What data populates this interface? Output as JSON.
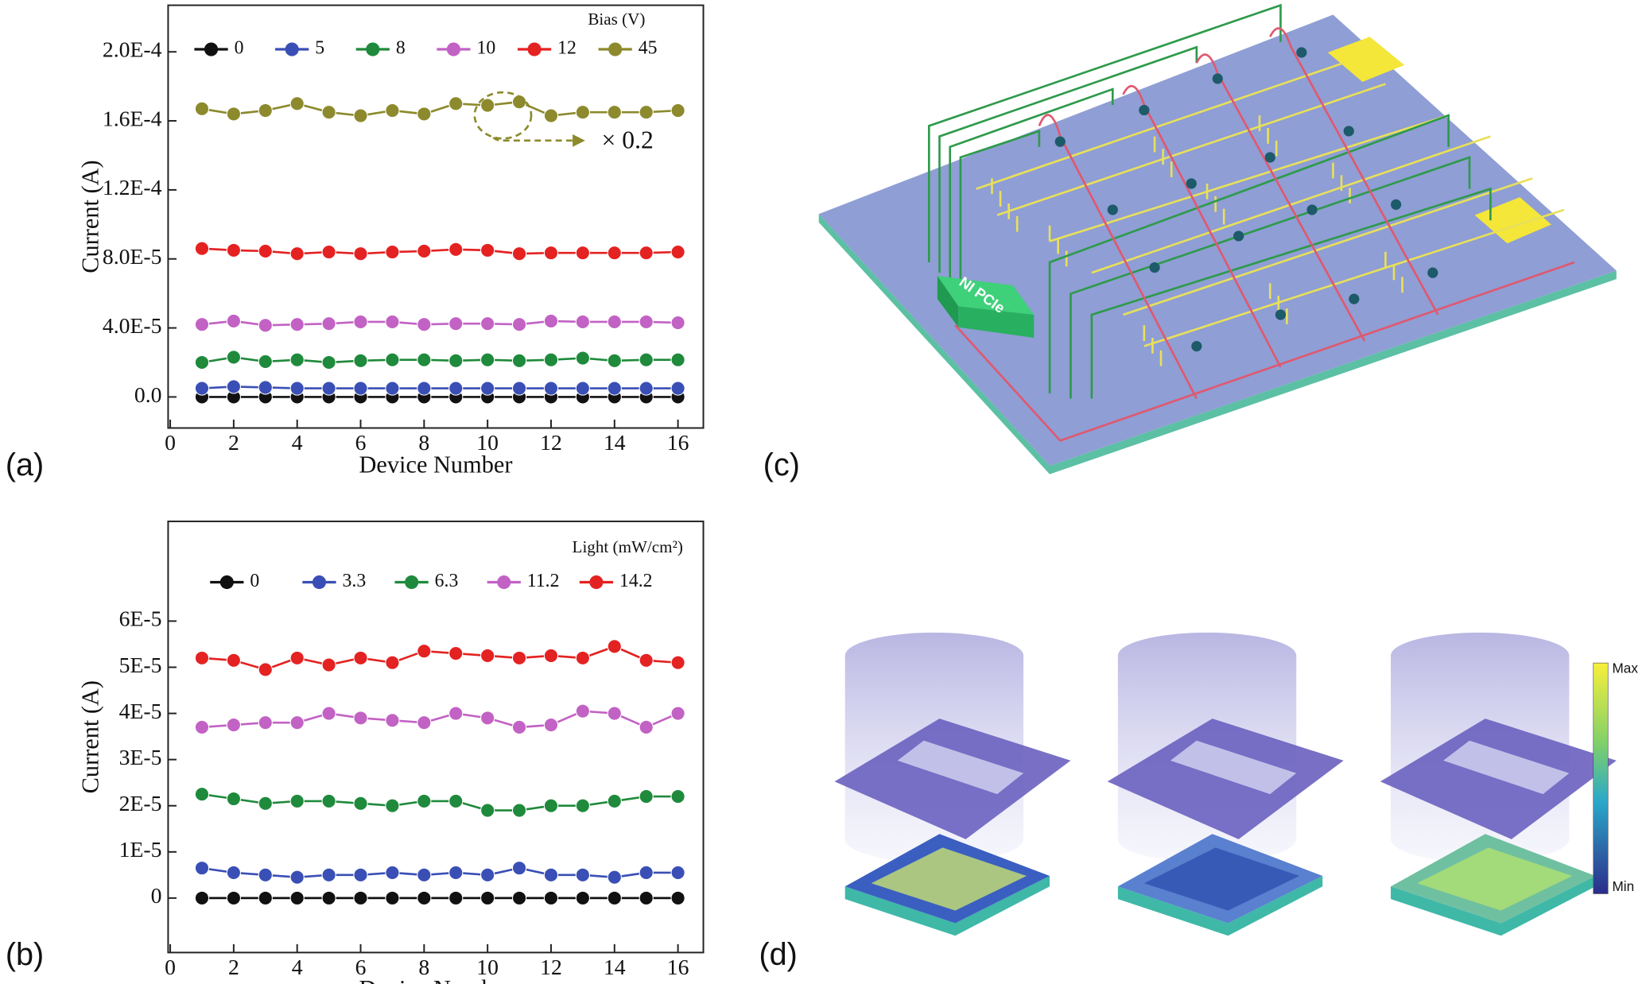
{
  "chart_data": [
    {
      "type": "line",
      "x_label": "Device Number",
      "y_label": "Current (A)",
      "legend_title": "Bias (V)",
      "legend": "top",
      "annotation": "× 0.2",
      "x": [
        1,
        2,
        3,
        4,
        5,
        6,
        7,
        8,
        9,
        10,
        11,
        12,
        13,
        14,
        15,
        16
      ],
      "xlim": [
        0,
        16.8
      ],
      "xticks": [
        0,
        2,
        4,
        6,
        8,
        10,
        12,
        14,
        16
      ],
      "ylim": [
        -1.8e-05,
        0.000227
      ],
      "yticks": [
        {
          "value": 0,
          "label": "0.0"
        },
        {
          "value": 4e-05,
          "label": "4.0E-5"
        },
        {
          "value": 8e-05,
          "label": "8.0E-5"
        },
        {
          "value": 0.00012,
          "label": "1.2E-4"
        },
        {
          "value": 0.00016,
          "label": "1.6E-4"
        },
        {
          "value": 0.0002,
          "label": "2.0E-4"
        }
      ],
      "series": [
        {
          "name": "0",
          "color": "#111111",
          "values": [
            0,
            0,
            0,
            0,
            0,
            0,
            0,
            0,
            0,
            0,
            0,
            0,
            0,
            0,
            0,
            0
          ]
        },
        {
          "name": "5",
          "color": "#3a4fb5",
          "values": [
            5e-06,
            6e-06,
            5.5e-06,
            5e-06,
            5e-06,
            5e-06,
            5e-06,
            5e-06,
            5e-06,
            5e-06,
            5e-06,
            5e-06,
            5e-06,
            5e-06,
            5e-06,
            5e-06
          ]
        },
        {
          "name": "8",
          "color": "#1f8a3c",
          "values": [
            2e-05,
            2.3e-05,
            2.05e-05,
            2.15e-05,
            2e-05,
            2.1e-05,
            2.15e-05,
            2.15e-05,
            2.1e-05,
            2.15e-05,
            2.1e-05,
            2.15e-05,
            2.25e-05,
            2.1e-05,
            2.15e-05,
            2.15e-05
          ]
        },
        {
          "name": "10",
          "color": "#c262c4",
          "values": [
            4.2e-05,
            4.4e-05,
            4.15e-05,
            4.2e-05,
            4.25e-05,
            4.35e-05,
            4.35e-05,
            4.2e-05,
            4.25e-05,
            4.25e-05,
            4.2e-05,
            4.4e-05,
            4.35e-05,
            4.35e-05,
            4.35e-05,
            4.3e-05
          ]
        },
        {
          "name": "12",
          "color": "#e42222",
          "values": [
            8.6e-05,
            8.5e-05,
            8.45e-05,
            8.3e-05,
            8.4e-05,
            8.3e-05,
            8.4e-05,
            8.45e-05,
            8.55e-05,
            8.5e-05,
            8.3e-05,
            8.35e-05,
            8.35e-05,
            8.35e-05,
            8.35e-05,
            8.4e-05
          ]
        },
        {
          "name": "45",
          "color": "#8c8a2c",
          "values": [
            0.000167,
            0.000164,
            0.000166,
            0.00017,
            0.000165,
            0.000163,
            0.000166,
            0.000164,
            0.00017,
            0.000169,
            0.000171,
            0.000163,
            0.000165,
            0.000165,
            0.000165,
            0.000166
          ]
        }
      ]
    },
    {
      "type": "line",
      "x_label": "Device Number",
      "y_label": "Current (A)",
      "legend_title": "Light (mW/cm²)",
      "legend": "top",
      "x": [
        1,
        2,
        3,
        4,
        5,
        6,
        7,
        8,
        9,
        10,
        11,
        12,
        13,
        14,
        15,
        16
      ],
      "xlim": [
        0,
        16.8
      ],
      "xticks": [
        0,
        2,
        4,
        6,
        8,
        10,
        12,
        14,
        16
      ],
      "ylim": [
        -1.18e-05,
        8.16e-05
      ],
      "yticks": [
        0,
        {
          "value": 1e-05,
          "label": "1E-5"
        },
        {
          "value": 2e-05,
          "label": "2E-5"
        },
        {
          "value": 3e-05,
          "label": "3E-5"
        },
        {
          "value": 4e-05,
          "label": "4E-5"
        },
        {
          "value": 5e-05,
          "label": "5E-5"
        },
        {
          "value": 6e-05,
          "label": "6E-5"
        }
      ],
      "series": [
        {
          "name": "0",
          "color": "#111111",
          "values": [
            0,
            0,
            0,
            0,
            0,
            0,
            0,
            0,
            0,
            0,
            0,
            0,
            0,
            0,
            0,
            0
          ]
        },
        {
          "name": "3.3",
          "color": "#3a4fb5",
          "values": [
            6.5e-06,
            5.5e-06,
            5e-06,
            4.5e-06,
            5e-06,
            5e-06,
            5.5e-06,
            5e-06,
            5.5e-06,
            5e-06,
            6.5e-06,
            5e-06,
            5e-06,
            4.5e-06,
            5.5e-06,
            5.5e-06
          ]
        },
        {
          "name": "6.3",
          "color": "#1f8a3c",
          "values": [
            2.25e-05,
            2.15e-05,
            2.05e-05,
            2.1e-05,
            2.1e-05,
            2.05e-05,
            2e-05,
            2.1e-05,
            2.1e-05,
            1.9e-05,
            1.9e-05,
            2e-05,
            2e-05,
            2.1e-05,
            2.2e-05,
            2.2e-05
          ]
        },
        {
          "name": "11.2",
          "color": "#c262c4",
          "values": [
            3.7e-05,
            3.75e-05,
            3.8e-05,
            3.8e-05,
            4e-05,
            3.9e-05,
            3.85e-05,
            3.8e-05,
            4e-05,
            3.9e-05,
            3.7e-05,
            3.75e-05,
            4.05e-05,
            4e-05,
            3.7e-05,
            4e-05
          ]
        },
        {
          "name": "14.2",
          "color": "#e42222",
          "values": [
            5.2e-05,
            5.15e-05,
            4.95e-05,
            5.2e-05,
            5.05e-05,
            5.2e-05,
            5.1e-05,
            5.35e-05,
            5.3e-05,
            5.25e-05,
            5.2e-05,
            5.25e-05,
            5.2e-05,
            5.45e-05,
            5.15e-05,
            5.1e-05
          ]
        }
      ]
    }
  ],
  "labels": [
    "(a)",
    "(b)",
    "(c)",
    "(d)"
  ],
  "diagram": {
    "chip_label": "NI PCIe"
  },
  "colorbar": {
    "max": "Max",
    "min": "Min"
  }
}
